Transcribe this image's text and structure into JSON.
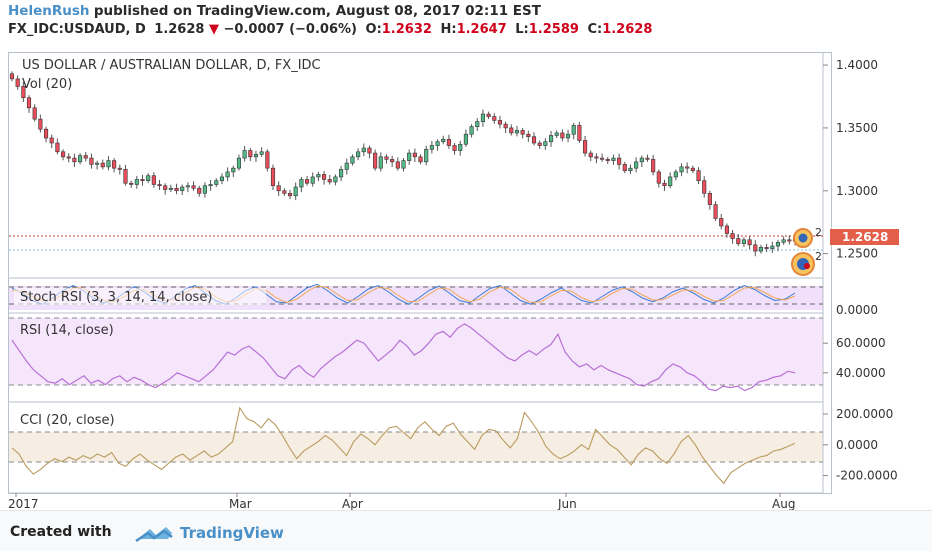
{
  "header": {
    "author": "HelenRush",
    "published": "published on TradingView.com, August 08, 2017 02:11 EST",
    "symbol": "FX_IDC:USDAUD, D",
    "last": "1.2628",
    "change_arrow": "▼",
    "change": "−0.0007 (−0.06%)",
    "o_label": "O:",
    "o_value": "1.2632",
    "h_label": "H:",
    "h_value": "1.2647",
    "l_label": "L:",
    "l_value": "1.2589",
    "c_label": "C:",
    "c_value": "1.2628"
  },
  "footer": {
    "created_with": "Created with",
    "brand": "TradingView",
    "logo_icon": "tradingview-cloud-icon"
  },
  "colors": {
    "up": "#53b987",
    "down": "#eb4d5c",
    "ohlc_red": "#d0021b",
    "price_tag": "#e35f4a",
    "stoch_k": "#3a7dd6",
    "stoch_d": "#f2a654",
    "rsi": "#b86fd6",
    "rsi_bg": "#f3e2fb",
    "cci": "#b99b5e",
    "cci_bg": "#f5ede0"
  },
  "chart_data": [
    {
      "type": "candlestick",
      "title": "US DOLLAR / AUSTRALIAN DOLLAR, D, FX_IDC",
      "volume_label": "Vol (20)",
      "last_price_label": "1.2628",
      "event_marker_count": "2",
      "y_ticks": [
        "1.4000",
        "1.3500",
        "1.3000",
        "1.2500"
      ],
      "ylim": [
        1.233,
        1.408
      ],
      "x_ticks": [
        "2017",
        "Mar",
        "Apr",
        "Jun",
        "Aug"
      ],
      "close": [
        1.389,
        1.383,
        1.374,
        1.366,
        1.357,
        1.349,
        1.342,
        1.338,
        1.331,
        1.327,
        1.326,
        1.323,
        1.328,
        1.326,
        1.321,
        1.322,
        1.319,
        1.324,
        1.318,
        1.317,
        1.306,
        1.305,
        1.309,
        1.308,
        1.312,
        1.305,
        1.304,
        1.301,
        1.302,
        1.3,
        1.303,
        1.304,
        1.302,
        1.298,
        1.304,
        1.305,
        1.308,
        1.311,
        1.315,
        1.318,
        1.326,
        1.332,
        1.327,
        1.329,
        1.331,
        1.318,
        1.304,
        1.3,
        1.298,
        1.296,
        1.303,
        1.309,
        1.306,
        1.311,
        1.313,
        1.309,
        1.307,
        1.311,
        1.317,
        1.322,
        1.327,
        1.331,
        1.334,
        1.33,
        1.318,
        1.327,
        1.325,
        1.323,
        1.318,
        1.324,
        1.33,
        1.327,
        1.323,
        1.333,
        1.336,
        1.339,
        1.341,
        1.336,
        1.332,
        1.337,
        1.345,
        1.351,
        1.355,
        1.361,
        1.359,
        1.356,
        1.353,
        1.35,
        1.346,
        1.348,
        1.345,
        1.343,
        1.338,
        1.336,
        1.339,
        1.344,
        1.346,
        1.342,
        1.345,
        1.352,
        1.34,
        1.33,
        1.327,
        1.326,
        1.325,
        1.324,
        1.326,
        1.321,
        1.316,
        1.318,
        1.323,
        1.326,
        1.325,
        1.315,
        1.306,
        1.304,
        1.311,
        1.315,
        1.319,
        1.318,
        1.316,
        1.308,
        1.298,
        1.289,
        1.278,
        1.272,
        1.266,
        1.262,
        1.258,
        1.261,
        1.257,
        1.252,
        1.255,
        1.254,
        1.256,
        1.259,
        1.261,
        1.26,
        1.263
      ]
    },
    {
      "type": "line",
      "title": "Stoch RSI (3, 3, 14, 14, close)",
      "y_ticks": [
        "0.0000"
      ],
      "ylim": [
        0,
        100
      ],
      "bands": [
        80,
        20
      ],
      "series": [
        {
          "name": "%K",
          "values": [
            80,
            60,
            30,
            15,
            40,
            70,
            90,
            70,
            40,
            20,
            30,
            60,
            85,
            65,
            35,
            20,
            45,
            75,
            90,
            60,
            30,
            15,
            40,
            70,
            85,
            55,
            25,
            20,
            50,
            80,
            95,
            70,
            40,
            20,
            45,
            75,
            90,
            65,
            35,
            15,
            40,
            70,
            88,
            60,
            30,
            20,
            50,
            78,
            90,
            60,
            30,
            15,
            35,
            60,
            80,
            55,
            30,
            20,
            45,
            70,
            85,
            65,
            40,
            25,
            40,
            65,
            80,
            60,
            35,
            20,
            40,
            70,
            90,
            75,
            50,
            30,
            35,
            60
          ]
        },
        {
          "name": "%D",
          "values": [
            70,
            65,
            45,
            30,
            30,
            55,
            80,
            80,
            55,
            30,
            25,
            45,
            70,
            75,
            50,
            30,
            33,
            60,
            82,
            75,
            45,
            25,
            28,
            55,
            78,
            70,
            40,
            22,
            35,
            65,
            88,
            82,
            55,
            30,
            33,
            60,
            82,
            78,
            50,
            25,
            28,
            55,
            80,
            75,
            45,
            25,
            35,
            65,
            84,
            75,
            45,
            22,
            25,
            48,
            70,
            68,
            42,
            25,
            33,
            58,
            78,
            75,
            52,
            32,
            33,
            52,
            72,
            70,
            48,
            28,
            30,
            55,
            80,
            82,
            62,
            40,
            32,
            48
          ]
        }
      ]
    },
    {
      "type": "line",
      "title": "RSI (14, close)",
      "y_ticks": [
        "60.0000",
        "40.0000"
      ],
      "ylim": [
        23,
        77
      ],
      "bands": [
        70,
        30
      ],
      "series": [
        {
          "name": "RSI",
          "values": [
            62,
            55,
            48,
            42,
            38,
            34,
            33,
            36,
            32,
            35,
            38,
            33,
            35,
            32,
            36,
            38,
            34,
            37,
            35,
            32,
            30,
            33,
            36,
            40,
            38,
            36,
            34,
            38,
            42,
            48,
            54,
            52,
            56,
            58,
            54,
            50,
            44,
            38,
            36,
            42,
            45,
            40,
            37,
            43,
            47,
            51,
            54,
            58,
            62,
            60,
            54,
            48,
            52,
            56,
            62,
            58,
            52,
            55,
            60,
            66,
            68,
            64,
            70,
            73,
            70,
            66,
            62,
            58,
            54,
            50,
            48,
            52,
            55,
            52,
            56,
            59,
            66,
            54,
            48,
            44,
            46,
            42,
            45,
            42,
            40,
            38,
            36,
            32,
            31,
            34,
            36,
            42,
            46,
            44,
            40,
            38,
            34,
            29,
            28,
            31,
            30,
            31,
            28,
            30,
            34,
            35,
            37,
            38,
            41,
            40
          ]
        }
      ]
    },
    {
      "type": "line",
      "title": "CCI (20, close)",
      "y_ticks": [
        "200.0000",
        "0.0000",
        "-200.0000"
      ],
      "ylim": [
        -300,
        265
      ],
      "bands": [
        100,
        -100
      ],
      "series": [
        {
          "name": "CCI",
          "values": [
            -20,
            -60,
            -140,
            -190,
            -160,
            -120,
            -90,
            -110,
            -80,
            -100,
            -70,
            -90,
            -60,
            -80,
            -50,
            -120,
            -140,
            -90,
            -60,
            -100,
            -130,
            -160,
            -120,
            -80,
            -60,
            -100,
            -70,
            -40,
            -80,
            -60,
            -20,
            20,
            240,
            170,
            150,
            110,
            170,
            130,
            60,
            -20,
            -90,
            -40,
            -10,
            20,
            60,
            30,
            -20,
            -70,
            20,
            70,
            40,
            0,
            60,
            110,
            120,
            80,
            40,
            110,
            150,
            100,
            60,
            120,
            140,
            70,
            20,
            -30,
            60,
            100,
            90,
            30,
            -20,
            40,
            210,
            150,
            80,
            -10,
            -60,
            -90,
            -70,
            -40,
            0,
            -30,
            100,
            50,
            0,
            -30,
            -80,
            -130,
            -60,
            -20,
            -40,
            -90,
            -120,
            -60,
            20,
            60,
            0,
            -80,
            -140,
            -200,
            -250,
            -180,
            -150,
            -120,
            -100,
            -80,
            -70,
            -40,
            -30,
            -10,
            10
          ]
        }
      ]
    }
  ]
}
